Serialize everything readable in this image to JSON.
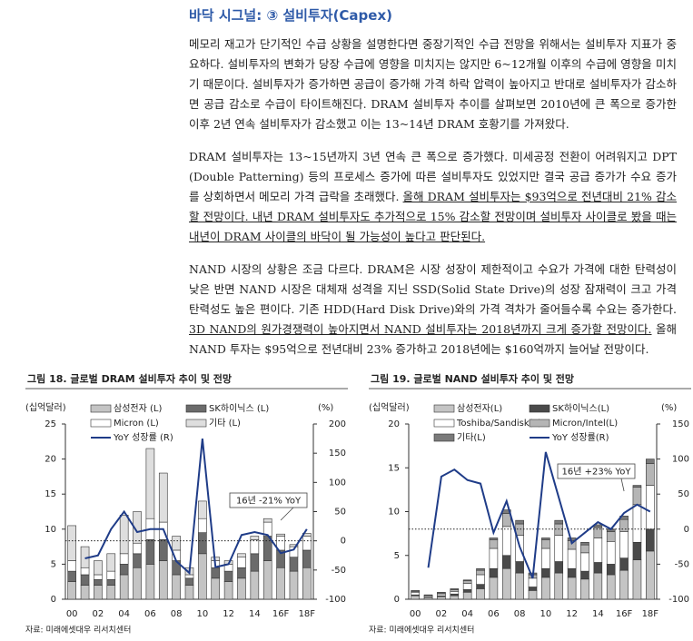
{
  "header": {
    "title": "바닥 시그널: ③ 설비투자(Capex)"
  },
  "paragraphs": [
    {
      "segments": [
        {
          "text": "메모리 재고가 단기적인 수급 상황을 설명한다면 중장기적인 수급 전망을 위해서는 설비투자 지표가 중요하다. 설비투자의 변화가 당장 수급에 영향을 미치지는 않지만 6~12개월 이후의 수급에 영향을 미치기 때문이다. 설비투자가 증가하면 공급이 증가해 가격 하락 압력이 높아지고 반대로 설비투자가 감소하면 공급 감소로 수급이 타이트해진다. DRAM 설비투자 추이를 살펴보면 2010년에 큰 폭으로 증가한 이후 2년 연속 설비투자가 감소했고 이는 13~14년 DRAM 호황기를 가져왔다.",
          "underline": false
        }
      ]
    },
    {
      "segments": [
        {
          "text": "DRAM 설비투자는 13~15년까지 3년 연속 큰 폭으로 증가했다. 미세공정 전환이 어려워지고 DPT (Double Patterning) 등의 프로세스 증가에 따른 설비투자도 있었지만 결국 공급 증가가 수요 증가를 상회하면서 메모리 가격 급락을 초래했다. ",
          "underline": false
        },
        {
          "text": "올해 DRAM 설비투자는 $93억으로 전년대비 21% 감소할 전망이다. 내년 DRAM 설비투자도 추가적으로 15% 감소할 전망이며 설비투자 사이클로 봤을 때는 내년이 DRAM 사이클의 바닥이 될 가능성이 높다고 판단된다.",
          "underline": true
        }
      ]
    },
    {
      "segments": [
        {
          "text": "NAND 시장의 상황은 조금 다르다. DRAM은 시장 성장이 제한적이고 수요가 가격에 대한 탄력성이 낮은 반면 NAND 시장은 대체재 성격을 지닌 SSD(Solid State Drive)의 성장 잠재력이 크고 가격 탄력성도 높은 편이다. 기존 HDD(Hard Disk Drive)와의 가격 격차가 줄어들수록 수요는 증가한다. ",
          "underline": false
        },
        {
          "text": "3D NAND의 원가경쟁력이 높아지면서 NAND 설비투자는 2018년까지 크게 증가할 전망이다.",
          "underline": true
        },
        {
          "text": " 올해 NAND 투자는 $95억으로 전년대비 23% 증가하고 2018년에는 $160억까지 늘어날 전망이다.",
          "underline": false
        }
      ]
    }
  ],
  "chart_data": [
    {
      "type": "bar",
      "stacked": true,
      "title": "그림 18. 글로벌 DRAM 설비투자 추이 및 전망",
      "ylabel": "(십억달러)",
      "y2label": "(%)",
      "source": "자료: 미래에셋대우 리서치센터",
      "categories": [
        "00",
        null,
        "02",
        null,
        "04",
        null,
        "06",
        null,
        "08",
        null,
        "10",
        null,
        "12",
        null,
        "14",
        null,
        "16F",
        null,
        "18F"
      ],
      "ylim": [
        0,
        25
      ],
      "yticks": [
        0,
        5,
        10,
        15,
        20,
        25
      ],
      "y2lim": [
        -100,
        200
      ],
      "y2ticks": [
        -100,
        -50,
        0,
        50,
        100,
        150,
        200
      ],
      "reference_line": {
        "axis": "y2",
        "value": 0
      },
      "annotation": "16년 -21% YoY",
      "series": [
        {
          "name": "삼성전자 (L)",
          "color": "#c4c4c4",
          "values": [
            2.5,
            2,
            2,
            2,
            3.5,
            4.5,
            5,
            5.5,
            3.5,
            2,
            6.5,
            3,
            2.5,
            3,
            4,
            5.5,
            4.5,
            4,
            4.5
          ]
        },
        {
          "name": "SK하이닉스 (L)",
          "color": "#6b6b6b",
          "values": [
            1.5,
            1.5,
            0.8,
            0.8,
            1.5,
            2,
            3.5,
            3,
            2,
            1,
            3,
            1.5,
            1.5,
            1.5,
            2.5,
            3.5,
            2.5,
            2,
            2.5
          ]
        },
        {
          "name": "Micron (L)",
          "color": "#ffffff",
          "values": [
            1.5,
            1,
            0.7,
            1.2,
            1.5,
            1.5,
            3,
            2.5,
            1.5,
            0.5,
            2,
            1,
            1,
            1.5,
            2,
            2,
            2,
            1.5,
            2
          ]
        },
        {
          "name": "기타 (L)",
          "color": "#dedede",
          "values": [
            5,
            3,
            2,
            2.5,
            5.5,
            4.5,
            10,
            7,
            2,
            1,
            2.5,
            0.5,
            0.5,
            0.5,
            0.5,
            0.5,
            0.3,
            0.3,
            0.4
          ]
        },
        {
          "name": "YoY 성장률 (R)",
          "type": "line",
          "axis": "y2",
          "color": "#1f3c88",
          "values": [
            null,
            -30,
            -25,
            20,
            50,
            15,
            20,
            20,
            -35,
            -55,
            175,
            -45,
            -40,
            10,
            15,
            10,
            -21,
            -15,
            20
          ]
        }
      ]
    },
    {
      "type": "bar",
      "stacked": true,
      "title": "그림 19. 글로벌 NAND 설비투자 추이 및 전망",
      "ylabel": "(십억달러)",
      "y2label": "(%)",
      "source": "자료: 미래에셋대우 리서치센터",
      "categories": [
        "00",
        null,
        "02",
        null,
        "04",
        null,
        "06",
        null,
        "08",
        null,
        "10",
        null,
        "12",
        null,
        "14",
        null,
        "16F",
        null,
        "18F"
      ],
      "ylim": [
        0,
        20
      ],
      "yticks": [
        0,
        5,
        10,
        15,
        20
      ],
      "y2lim": [
        -100,
        150
      ],
      "y2ticks": [
        -100,
        -50,
        0,
        50,
        100,
        150
      ],
      "reference_line": {
        "axis": "y2",
        "value": 0
      },
      "annotation": "16년 +23% YoY",
      "series": [
        {
          "name": "삼성전자(L)",
          "color": "#c4c4c4",
          "values": [
            0.4,
            0.2,
            0.3,
            0.4,
            0.8,
            1.2,
            2.5,
            3.5,
            3,
            1,
            2.5,
            3,
            2.5,
            2.3,
            3,
            2.8,
            3.3,
            4.5,
            5.5
          ]
        },
        {
          "name": "SK하이닉스(L)",
          "color": "#4a4a4a",
          "values": [
            0.1,
            0.05,
            0.1,
            0.2,
            0.3,
            0.5,
            1,
            1.5,
            1.3,
            0.4,
            1,
            1.3,
            1,
            0.9,
            1.2,
            1.2,
            1.4,
            2,
            2.5
          ]
        },
        {
          "name": "Toshiba/Sandisk(L)",
          "color": "#ffffff",
          "values": [
            0.3,
            0.15,
            0.2,
            0.3,
            0.7,
            1.1,
            2.3,
            3.3,
            3,
            1,
            2.3,
            3,
            2.2,
            2.1,
            2.8,
            2.6,
            3,
            4.3,
            5
          ]
        },
        {
          "name": "Micron/Intel(L)",
          "color": "#b5b5b5",
          "values": [
            0.1,
            0.05,
            0.1,
            0.2,
            0.3,
            0.5,
            1,
            1.5,
            1.3,
            0.4,
            1,
            1.3,
            1,
            0.9,
            1.2,
            1.1,
            1.4,
            2,
            2.5
          ]
        },
        {
          "name": "기타(L)",
          "color": "#7a7a7a",
          "values": [
            0.1,
            0.05,
            0.1,
            0.1,
            0.1,
            0.2,
            0.2,
            0.4,
            0.4,
            0.2,
            0.2,
            0.4,
            0.3,
            0.3,
            0.3,
            0.3,
            0.4,
            0.2,
            0.5
          ]
        },
        {
          "name": "YoY 성장률(R)",
          "type": "line",
          "axis": "y2",
          "color": "#1f3c88",
          "values": [
            null,
            -55,
            75,
            85,
            70,
            65,
            -5,
            40,
            -25,
            -70,
            110,
            45,
            -20,
            -5,
            10,
            0,
            23,
            35,
            25
          ]
        }
      ]
    }
  ]
}
